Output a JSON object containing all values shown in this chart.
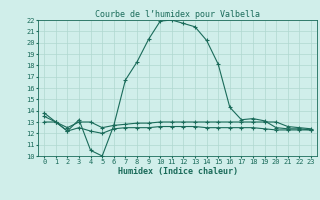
{
  "title": "Courbe de l’humidex pour Valbella",
  "xlabel": "Humidex (Indice chaleur)",
  "xlim": [
    -0.5,
    23.5
  ],
  "ylim": [
    10,
    22
  ],
  "yticks": [
    10,
    11,
    12,
    13,
    14,
    15,
    16,
    17,
    18,
    19,
    20,
    21,
    22
  ],
  "xticks": [
    0,
    1,
    2,
    3,
    4,
    5,
    6,
    7,
    8,
    9,
    10,
    11,
    12,
    13,
    14,
    15,
    16,
    17,
    18,
    19,
    20,
    21,
    22,
    23
  ],
  "bg_color": "#d0eeea",
  "grid_color": "#b0d8d0",
  "line_color": "#1a6b5a",
  "line1_x": [
    0,
    1,
    2,
    3,
    4,
    5,
    6,
    7,
    8,
    9,
    10,
    11,
    12,
    13,
    14,
    15,
    16,
    17,
    18,
    19,
    20,
    21,
    22,
    23
  ],
  "line1_y": [
    13.8,
    13.0,
    12.2,
    13.2,
    10.5,
    10.0,
    12.7,
    16.7,
    18.3,
    20.3,
    21.9,
    22.0,
    21.7,
    21.4,
    20.2,
    18.1,
    14.3,
    13.2,
    13.3,
    13.1,
    12.5,
    12.4,
    12.4,
    12.3
  ],
  "line2_x": [
    0,
    1,
    2,
    3,
    4,
    5,
    6,
    7,
    8,
    9,
    10,
    11,
    12,
    13,
    14,
    15,
    16,
    17,
    18,
    19,
    20,
    21,
    22,
    23
  ],
  "line2_y": [
    13.0,
    13.0,
    12.5,
    13.0,
    13.0,
    12.5,
    12.7,
    12.8,
    12.9,
    12.9,
    13.0,
    13.0,
    13.0,
    13.0,
    13.0,
    13.0,
    13.0,
    13.0,
    13.0,
    13.0,
    13.0,
    12.6,
    12.5,
    12.4
  ],
  "line3_x": [
    0,
    1,
    2,
    3,
    4,
    5,
    6,
    7,
    8,
    9,
    10,
    11,
    12,
    13,
    14,
    15,
    16,
    17,
    18,
    19,
    20,
    21,
    22,
    23
  ],
  "line3_y": [
    13.5,
    13.0,
    12.2,
    12.5,
    12.2,
    12.0,
    12.4,
    12.5,
    12.5,
    12.5,
    12.6,
    12.6,
    12.6,
    12.6,
    12.5,
    12.5,
    12.5,
    12.5,
    12.5,
    12.4,
    12.3,
    12.3,
    12.3,
    12.3
  ],
  "marker": "+",
  "markersize": 3,
  "linewidth": 0.8,
  "title_fontsize": 6,
  "axis_fontsize": 6,
  "tick_fontsize": 5
}
